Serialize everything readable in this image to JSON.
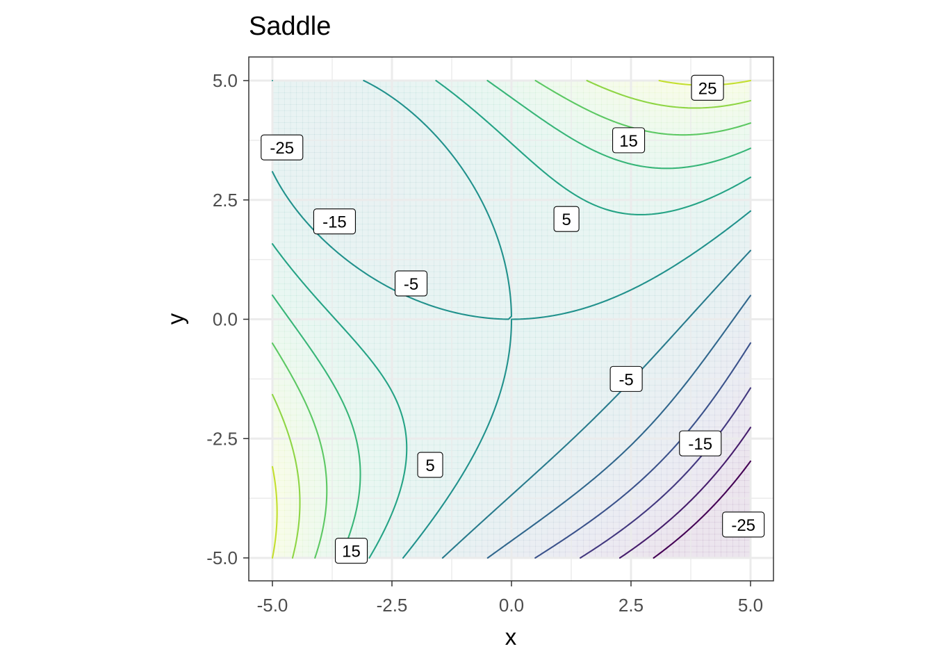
{
  "chart_data": {
    "type": "contour",
    "title": "Saddle",
    "xlabel": "x",
    "ylabel": "y",
    "xlim": [
      -5,
      5
    ],
    "ylim": [
      -5,
      5
    ],
    "x_ticks": [
      -5,
      -2.5,
      0,
      2.5,
      5
    ],
    "y_ticks": [
      -5,
      -2.5,
      0,
      2.5,
      5
    ],
    "x_tick_labels": [
      "-5.0",
      "-2.5",
      "0.0",
      "2.5",
      "5.0"
    ],
    "y_tick_labels": [
      "-5.0",
      "-2.5",
      "0.0",
      "2.5",
      "5.0"
    ],
    "grid": true,
    "contour_levels": [
      -30,
      -25,
      -20,
      -15,
      -10,
      -5,
      0,
      5,
      10,
      15,
      20,
      25
    ],
    "contour_labels": [
      {
        "text": "25",
        "x": 4.1,
        "y": 4.85
      },
      {
        "text": "15",
        "x": 2.45,
        "y": 3.75
      },
      {
        "text": "5",
        "x": 1.15,
        "y": 2.1
      },
      {
        "text": "-25",
        "x": -4.8,
        "y": 3.6
      },
      {
        "text": "-15",
        "x": -3.7,
        "y": 2.05
      },
      {
        "text": "-5",
        "x": -2.1,
        "y": 0.75
      },
      {
        "text": "-5",
        "x": 2.4,
        "y": -1.25
      },
      {
        "text": "-15",
        "x": 3.95,
        "y": -2.6
      },
      {
        "text": "-25",
        "x": 4.85,
        "y": -4.3
      },
      {
        "text": "5",
        "x": -1.7,
        "y": -3.05
      },
      {
        "text": "15",
        "x": -3.35,
        "y": -4.85
      }
    ],
    "colors": {
      "low": "#440154",
      "mid": "#21918c",
      "high": "#fde725"
    }
  }
}
